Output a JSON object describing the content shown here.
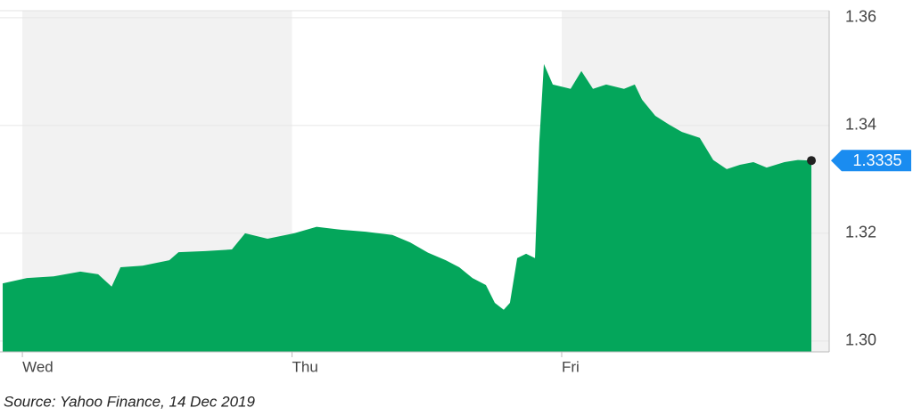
{
  "chart_data": {
    "type": "area",
    "source": "Source: Yahoo Finance, 14 Dec 2019",
    "xlim": [
      -0.083,
      2.992
    ],
    "xticks": [
      {
        "value": 0,
        "label": "Wed"
      },
      {
        "value": 1,
        "label": "Thu"
      },
      {
        "value": 2,
        "label": "Fri"
      }
    ],
    "ylim": [
      1.298,
      1.3613
    ],
    "yticks": [
      {
        "value": 1.3,
        "label": "1.30"
      },
      1.32,
      1.34,
      1.36
    ],
    "grid": true,
    "series": [
      {
        "color": "#04a65b",
        "x": [
          -0.073,
          0.017,
          0.116,
          0.215,
          0.281,
          0.331,
          0.364,
          0.446,
          0.545,
          0.579,
          0.678,
          0.777,
          0.826,
          0.909,
          1.008,
          1.091,
          1.174,
          1.273,
          1.372,
          1.438,
          1.504,
          1.57,
          1.62,
          1.669,
          1.719,
          1.752,
          1.785,
          1.808,
          1.835,
          1.868,
          1.901,
          1.917,
          1.934,
          1.967,
          2.033,
          2.073,
          2.116,
          2.165,
          2.231,
          2.271,
          2.298,
          2.347,
          2.397,
          2.446,
          2.512,
          2.562,
          2.612,
          2.661,
          2.711,
          2.76,
          2.826,
          2.876,
          2.926
        ],
        "values": [
          1.3107,
          1.3117,
          1.312,
          1.3129,
          1.3124,
          1.3101,
          1.3137,
          1.314,
          1.315,
          1.3165,
          1.3167,
          1.317,
          1.32,
          1.319,
          1.32,
          1.3212,
          1.3207,
          1.3203,
          1.3197,
          1.3183,
          1.3164,
          1.315,
          1.3137,
          1.3117,
          1.3104,
          1.3071,
          1.3058,
          1.3071,
          1.3154,
          1.3162,
          1.3154,
          1.3369,
          1.3514,
          1.3476,
          1.3468,
          1.3501,
          1.3468,
          1.3476,
          1.3468,
          1.3476,
          1.3448,
          1.3418,
          1.3402,
          1.3388,
          1.3377,
          1.3336,
          1.3319,
          1.3327,
          1.3332,
          1.3322,
          1.3332,
          1.3336,
          1.3335
        ]
      }
    ]
  }
}
